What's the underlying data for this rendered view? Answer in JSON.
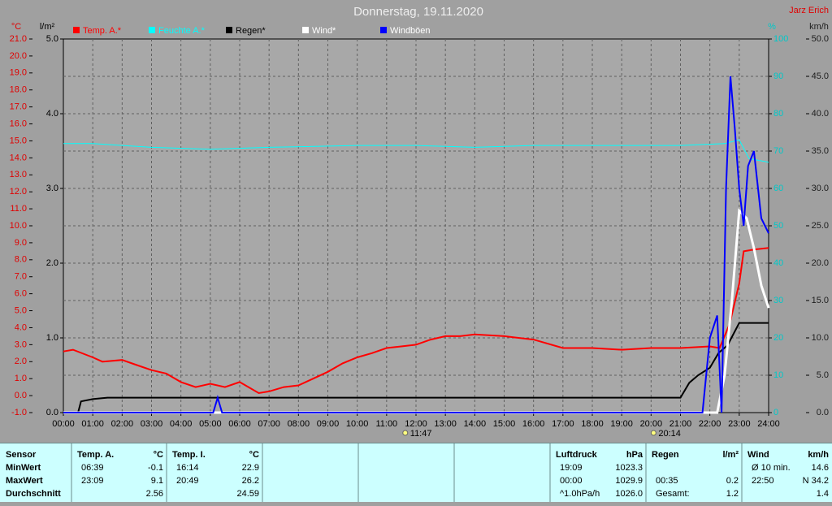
{
  "chart_data": {
    "type": "line",
    "title": "Donnerstag, 19.11.2020",
    "author": "Jarz Erich",
    "xlim": [
      0,
      24
    ],
    "xticks": [
      {
        "value": 0,
        "label": "00:00"
      },
      {
        "value": 1,
        "label": "01:00"
      },
      {
        "value": 2,
        "label": "02:00"
      },
      {
        "value": 3,
        "label": "03:00"
      },
      {
        "value": 4,
        "label": "04:00"
      },
      {
        "value": 5,
        "label": "05:00"
      },
      {
        "value": 6,
        "label": "06:00"
      },
      {
        "value": 7,
        "label": "07:00"
      },
      {
        "value": 8,
        "label": "08:00"
      },
      {
        "value": 9,
        "label": "09:00"
      },
      {
        "value": 10,
        "label": "10:00"
      },
      {
        "value": 11,
        "label": "11:00"
      },
      {
        "value": 12,
        "label": "12:00"
      },
      {
        "value": 13,
        "label": "13:00"
      },
      {
        "value": 14,
        "label": "14:00"
      },
      {
        "value": 15,
        "label": "15:00"
      },
      {
        "value": 16,
        "label": "16:00"
      },
      {
        "value": 17,
        "label": "17:00"
      },
      {
        "value": 18,
        "label": "18:00"
      },
      {
        "value": 19,
        "label": "19:00"
      },
      {
        "value": 20,
        "label": "20:00"
      },
      {
        "value": 21,
        "label": "21:00"
      },
      {
        "value": 22,
        "label": "22:00"
      },
      {
        "value": 23,
        "label": "23:00"
      },
      {
        "value": 24,
        "label": "24:00"
      }
    ],
    "axes": {
      "y": {
        "label": "°C",
        "color": "#e00000",
        "lim": [
          -1,
          21
        ],
        "ticks": [
          {
            "value": -1,
            "label": "-1.0"
          },
          {
            "value": 0,
            "label": "0.0"
          },
          {
            "value": 1,
            "label": "1.0"
          },
          {
            "value": 2,
            "label": "2.0"
          },
          {
            "value": 3,
            "label": "3.0"
          },
          {
            "value": 4,
            "label": "4.0"
          },
          {
            "value": 5,
            "label": "5.0"
          },
          {
            "value": 6,
            "label": "6.0"
          },
          {
            "value": 7,
            "label": "7.0"
          },
          {
            "value": 8,
            "label": "8.0"
          },
          {
            "value": 9,
            "label": "9.0"
          },
          {
            "value": 10,
            "label": "10.0"
          },
          {
            "value": 11,
            "label": "11.0"
          },
          {
            "value": 12,
            "label": "12.0"
          },
          {
            "value": 13,
            "label": "13.0"
          },
          {
            "value": 14,
            "label": "14.0"
          },
          {
            "value": 15,
            "label": "15.0"
          },
          {
            "value": 16,
            "label": "16.0"
          },
          {
            "value": 17,
            "label": "17.0"
          },
          {
            "value": 18,
            "label": "18.0"
          },
          {
            "value": 19,
            "label": "19.0"
          },
          {
            "value": 20,
            "label": "20.0"
          },
          {
            "value": 21,
            "label": "21.0"
          }
        ]
      },
      "y_rain": {
        "label": "l/m²",
        "color": "#000000",
        "lim": [
          0,
          5
        ],
        "ticks": [
          {
            "value": 0,
            "label": "0.0"
          },
          {
            "value": 1,
            "label": "1.0"
          },
          {
            "value": 2,
            "label": "2.0"
          },
          {
            "value": 3,
            "label": "3.0"
          },
          {
            "value": 4,
            "label": "4.0"
          },
          {
            "value": 5,
            "label": "5.0"
          }
        ]
      },
      "y2": {
        "label": "%",
        "color": "#00c8c8",
        "lim": [
          0,
          100
        ],
        "ticks": [
          0,
          10,
          20,
          30,
          40,
          50,
          60,
          70,
          80,
          90,
          100
        ]
      },
      "y2_wind": {
        "label": "km/h",
        "color": "#202020",
        "lim": [
          0,
          50
        ],
        "ticks": [
          {
            "value": 0,
            "label": "0.0"
          },
          {
            "value": 5,
            "label": "5.0"
          },
          {
            "value": 10,
            "label": "10.0"
          },
          {
            "value": 15,
            "label": "15.0"
          },
          {
            "value": 20,
            "label": "20.0"
          },
          {
            "value": 25,
            "label": "25.0"
          },
          {
            "value": 30,
            "label": "30.0"
          },
          {
            "value": 35,
            "label": "35.0"
          },
          {
            "value": 40,
            "label": "40.0"
          },
          {
            "value": 45,
            "label": "45.0"
          },
          {
            "value": 50,
            "label": "50.0"
          }
        ]
      }
    },
    "grid": true,
    "series": [
      {
        "name": "Temp. A.*",
        "color": "#ff0000",
        "axis": "y",
        "x": [
          0,
          0.33,
          1,
          1.33,
          2,
          2.5,
          3,
          3.5,
          4,
          4.5,
          5,
          5.5,
          6,
          6.65,
          7,
          7.5,
          8,
          8.5,
          9,
          9.5,
          10,
          10.5,
          11,
          11.5,
          12,
          12.5,
          13,
          13.5,
          14,
          15,
          16,
          17,
          18,
          19,
          20,
          21,
          22,
          22.33,
          22.67,
          23,
          23.15,
          23.5,
          24
        ],
        "values": [
          2.6,
          2.7,
          2.25,
          2.0,
          2.1,
          1.8,
          1.5,
          1.3,
          0.8,
          0.5,
          0.7,
          0.5,
          0.8,
          0.15,
          0.25,
          0.5,
          0.6,
          1.0,
          1.4,
          1.9,
          2.25,
          2.5,
          2.8,
          2.9,
          3.0,
          3.3,
          3.5,
          3.5,
          3.6,
          3.5,
          3.3,
          2.8,
          2.8,
          2.7,
          2.8,
          2.8,
          2.9,
          2.8,
          4.2,
          6.6,
          8.5,
          8.6,
          8.7
        ]
      },
      {
        "name": "Feuchte A.*",
        "color": "#00ffff",
        "axis": "y2",
        "x": [
          0,
          1,
          3,
          5,
          7,
          10,
          12,
          14,
          16,
          18,
          21,
          22.5,
          23,
          23.33,
          24
        ],
        "values": [
          72,
          72,
          71,
          70.5,
          71,
          71.5,
          71.5,
          71,
          71.5,
          71.5,
          71.5,
          72,
          73,
          68,
          67
        ]
      },
      {
        "name": "Regen*",
        "color": "#000000",
        "axis": "y_rain",
        "x": [
          0,
          0.5,
          0.6,
          1,
          1.5,
          21,
          21.3,
          21.6,
          22,
          22.3,
          22.6,
          23,
          24
        ],
        "values": [
          0,
          0,
          0.15,
          0.18,
          0.2,
          0.2,
          0.4,
          0.5,
          0.6,
          0.8,
          0.9,
          1.2,
          1.2
        ]
      },
      {
        "name": "Wind*",
        "color": "#ffffff",
        "axis": "y2_wind",
        "x": [
          0,
          22.25,
          22.5,
          22.75,
          23,
          23.25,
          23.5,
          23.75,
          24
        ],
        "values": [
          0,
          0,
          5,
          15,
          27,
          26,
          22,
          17,
          14
        ]
      },
      {
        "name": "Windböen",
        "color": "#0000ff",
        "axis": "y2_wind",
        "x": [
          0,
          5.1,
          5.25,
          5.4,
          21.75,
          22,
          22.25,
          22.4,
          22.55,
          22.7,
          22.85,
          23,
          23.15,
          23.3,
          23.5,
          23.75,
          24
        ],
        "values": [
          0,
          0,
          2,
          0,
          0,
          10,
          13,
          0,
          30,
          45,
          38,
          30,
          25,
          33,
          35,
          26,
          24
        ]
      }
    ],
    "annotations": [
      "11:47",
      "20:14"
    ]
  },
  "table": {
    "columns": [
      {
        "header": "Sensor",
        "rows": [
          [
            "MinWert"
          ],
          [
            "MaxWert"
          ],
          [
            "Durchschnitt"
          ]
        ]
      },
      {
        "header": "Temp. A.",
        "unit": "°C",
        "rows": [
          [
            "06:39",
            "-0.1"
          ],
          [
            "23:09",
            "9.1"
          ],
          [
            "2.56"
          ]
        ]
      },
      {
        "header": "Temp. I.",
        "unit": "°C",
        "rows": [
          [
            "16:14",
            "22.9"
          ],
          [
            "20:49",
            "26.2"
          ],
          [
            "24.59"
          ]
        ]
      },
      {
        "header": "Luftdruck",
        "unit": "hPa",
        "rows": [
          [
            "19:09",
            "1023.3"
          ],
          [
            "00:00",
            "1029.9"
          ],
          [
            "^1.0hPa/h",
            "1026.0"
          ]
        ]
      },
      {
        "header": "Regen",
        "unit": "l/m²",
        "rows": [
          [],
          [
            "00:35",
            "0.2"
          ],
          [
            "Gesamt:",
            "1.2"
          ]
        ]
      },
      {
        "header": "Wind",
        "unit": "km/h",
        "rows": [
          [
            "Ø 10 min.",
            "14.6"
          ],
          [
            "22:50",
            "N 34.2"
          ],
          [
            "1.4"
          ]
        ]
      }
    ]
  }
}
